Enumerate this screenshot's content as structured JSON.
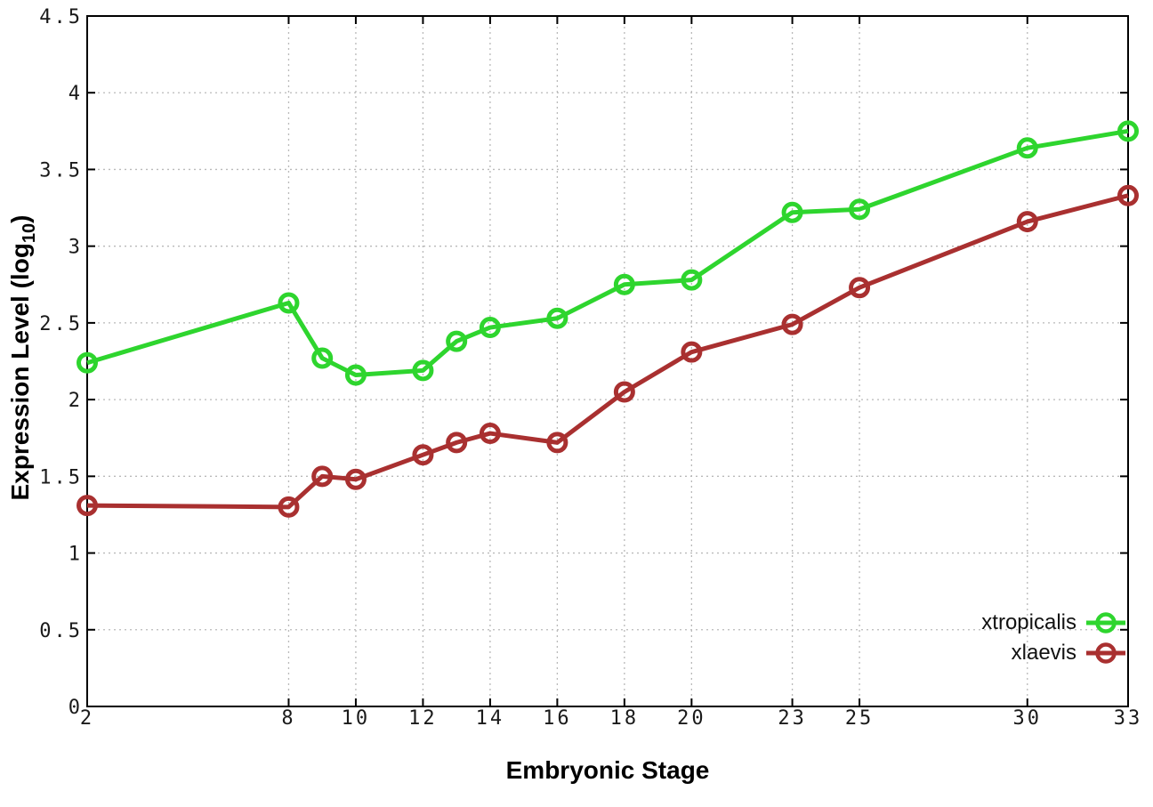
{
  "figure": {
    "background": "#ffffff",
    "border_color": "#000000",
    "grid_color": "#b9b9b9",
    "tick_color": "#000000",
    "tick_label_color": "#1a1a1a"
  },
  "chart_data": {
    "type": "line",
    "title": "",
    "xlabel": "Embryonic Stage",
    "ylabel": "Expression Level (log10)",
    "ylabel_parts": {
      "prefix": "Expression Level (log",
      "sub": "10",
      "suffix": ")"
    },
    "x": [
      2,
      8,
      9,
      10,
      12,
      13,
      14,
      16,
      18,
      20,
      23,
      25,
      30,
      33
    ],
    "series": [
      {
        "name": "xtropicalis",
        "color": "#2ed52e",
        "marker": "open-circle",
        "values": [
          2.24,
          2.63,
          2.27,
          2.16,
          2.19,
          2.38,
          2.47,
          2.53,
          2.75,
          2.78,
          3.22,
          3.24,
          3.64,
          3.75
        ]
      },
      {
        "name": "xlaevis",
        "color": "#a93030",
        "marker": "open-circle",
        "values": [
          1.31,
          1.3,
          1.5,
          1.48,
          1.64,
          1.72,
          1.78,
          1.72,
          2.05,
          2.31,
          2.49,
          2.73,
          3.16,
          3.33
        ]
      }
    ],
    "x_ticks": [
      "2",
      "8",
      "10",
      "12",
      "14",
      "16",
      "18",
      "20",
      "23",
      "25",
      "30",
      "33"
    ],
    "y_ticks": [
      "0",
      "0.5",
      "1",
      "1.5",
      "2",
      "2.5",
      "3",
      "3.5",
      "4",
      "4.5"
    ],
    "xlim": [
      2,
      33
    ],
    "ylim": [
      0,
      4.5
    ],
    "grid": true,
    "grid_style": "dotted",
    "legend_position": "bottom-right-inside"
  }
}
